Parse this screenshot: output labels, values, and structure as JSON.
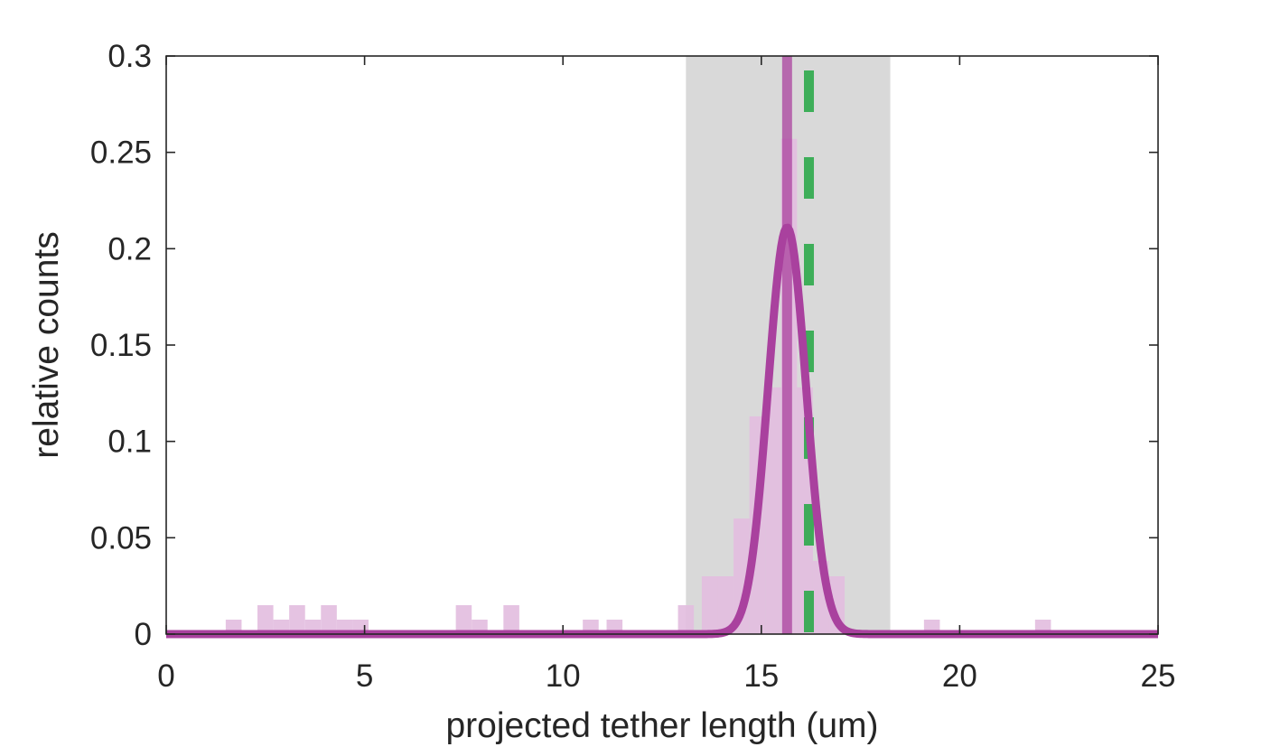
{
  "chart_data": {
    "type": "bar",
    "title": "",
    "xlabel": "projected tether length (um)",
    "ylabel": "relative counts",
    "xlim": [
      0,
      25
    ],
    "ylim": [
      0,
      0.3
    ],
    "xticks": [
      0,
      5,
      10,
      15,
      20,
      25
    ],
    "xtick_labels": [
      "0",
      "5",
      "10",
      "15",
      "20",
      "25"
    ],
    "yticks": [
      0,
      0.05,
      0.1,
      0.15,
      0.2,
      0.25,
      0.3
    ],
    "ytick_labels": [
      "0",
      "0.05",
      "0.1",
      "0.15",
      "0.2",
      "0.25",
      "0.3"
    ],
    "grid": false,
    "legend": "none",
    "shaded_region": {
      "x_start": 13.1,
      "x_end": 18.25,
      "color": "#d9d9d9"
    },
    "histogram": {
      "color": "#e2bcdf",
      "bin_width": 0.4,
      "bins": [
        {
          "x0": 1.5,
          "value": 0.0075
        },
        {
          "x0": 2.3,
          "value": 0.015
        },
        {
          "x0": 2.7,
          "value": 0.0075
        },
        {
          "x0": 3.1,
          "value": 0.015
        },
        {
          "x0": 3.5,
          "value": 0.0075
        },
        {
          "x0": 3.9,
          "value": 0.015
        },
        {
          "x0": 4.3,
          "value": 0.0075
        },
        {
          "x0": 4.7,
          "value": 0.0075
        },
        {
          "x0": 7.3,
          "value": 0.015
        },
        {
          "x0": 7.7,
          "value": 0.0075
        },
        {
          "x0": 8.5,
          "value": 0.015
        },
        {
          "x0": 10.5,
          "value": 0.0075
        },
        {
          "x0": 11.1,
          "value": 0.0075
        },
        {
          "x0": 12.9,
          "value": 0.015
        },
        {
          "x0": 13.5,
          "value": 0.03
        },
        {
          "x0": 13.9,
          "value": 0.03
        },
        {
          "x0": 14.3,
          "value": 0.06
        },
        {
          "x0": 14.7,
          "value": 0.113
        },
        {
          "x0": 15.1,
          "value": 0.128
        },
        {
          "x0": 15.5,
          "value": 0.257
        },
        {
          "x0": 15.9,
          "value": 0.128
        },
        {
          "x0": 16.3,
          "value": 0.038
        },
        {
          "x0": 16.7,
          "value": 0.03
        },
        {
          "x0": 19.1,
          "value": 0.0075
        },
        {
          "x0": 21.9,
          "value": 0.0075
        }
      ]
    },
    "gaussian_fit": {
      "mean": 15.65,
      "sigma": 0.48,
      "peak": 0.211,
      "color": "#a9419e"
    },
    "mean_line": {
      "x": 15.65,
      "color": "#a9419e"
    },
    "reference_line": {
      "x": 16.2,
      "style": "dashed",
      "color": "#2ca84a"
    }
  }
}
